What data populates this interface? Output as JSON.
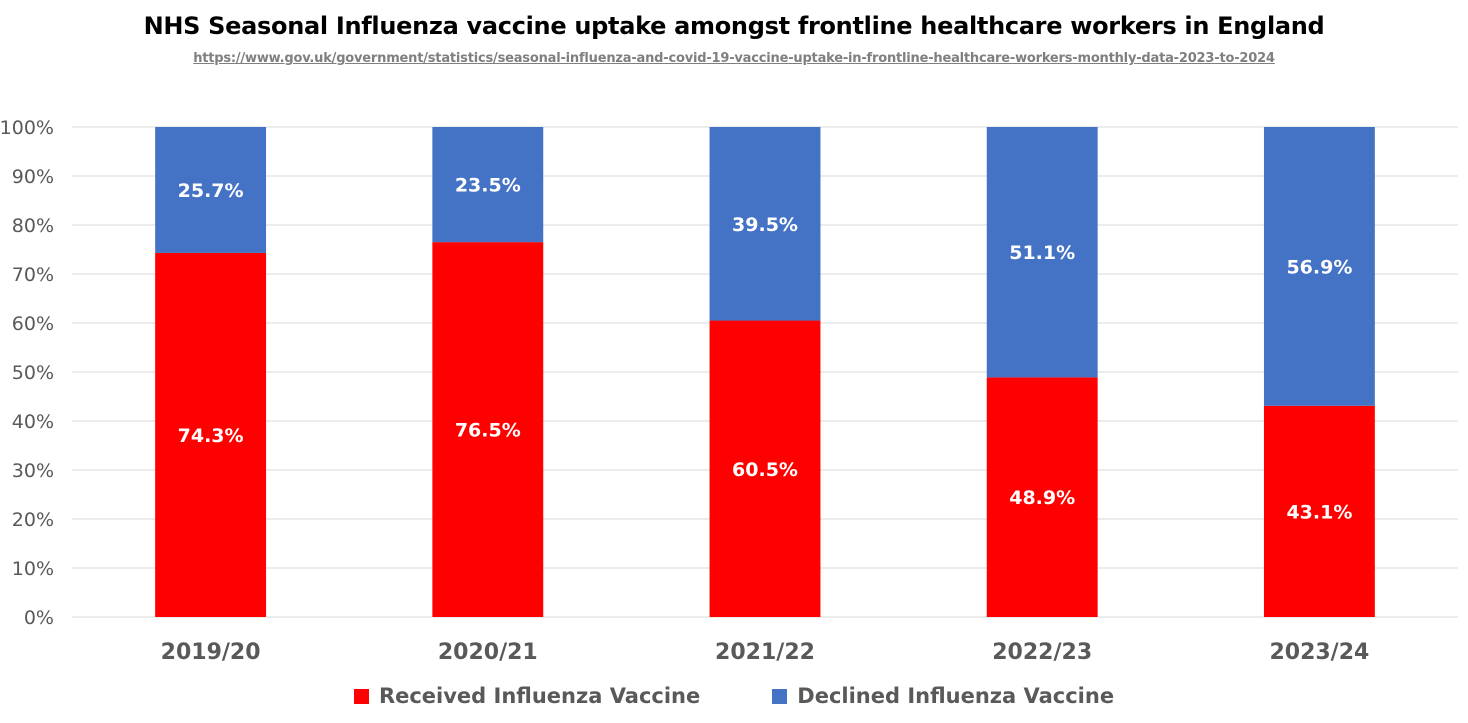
{
  "chart_data": {
    "type": "bar",
    "stacked": true,
    "title": "NHS Seasonal Influenza vaccine uptake amongst frontline healthcare workers in England",
    "subtitle": "https://www.gov.uk/government/statistics/seasonal-influenza-and-covid-19-vaccine-uptake-in-frontline-healthcare-workers-monthly-data-2023-to-2024",
    "categories": [
      "2019/20",
      "2020/21",
      "2021/22",
      "2022/23",
      "2023/24"
    ],
    "series": [
      {
        "name": "Received Influenza Vaccine",
        "color": "#ff0000",
        "values": [
          74.3,
          76.5,
          60.5,
          48.9,
          43.1
        ],
        "labels": [
          "74.3%",
          "76.5%",
          "60.5%",
          "48.9%",
          "43.1%"
        ]
      },
      {
        "name": "Declined Influenza Vaccine",
        "color": "#4472c4",
        "values": [
          25.7,
          23.5,
          39.5,
          51.1,
          56.9
        ],
        "labels": [
          "25.7%",
          "23.5%",
          "39.5%",
          "51.1%",
          "56.9%"
        ]
      }
    ],
    "y_ticks": [
      "0%",
      "10%",
      "20%",
      "30%",
      "40%",
      "50%",
      "60%",
      "70%",
      "80%",
      "90%",
      "100%"
    ],
    "ylim": [
      0,
      100
    ],
    "grid": true,
    "legend_position": "bottom"
  }
}
